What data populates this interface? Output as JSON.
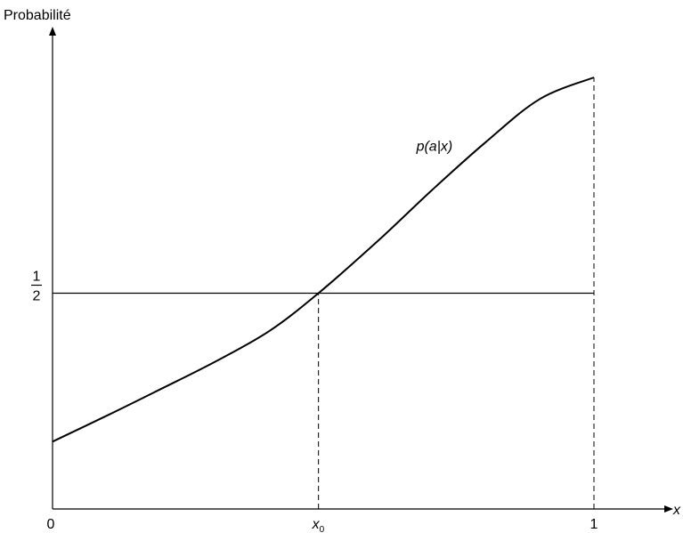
{
  "chart_data": {
    "type": "line",
    "ylabel": "Probabilité",
    "xlabel": "x",
    "xlim": [
      0,
      1.13
    ],
    "ylim": [
      0,
      1.06
    ],
    "x_ticks": [
      {
        "value": 0,
        "label": "0"
      },
      {
        "value": 0.4912,
        "label": "x",
        "subscript": "0"
      },
      {
        "value": 1,
        "label": "1"
      }
    ],
    "y_ticks": [
      {
        "value": 0.5,
        "numerator": "1",
        "denominator": "2"
      }
    ],
    "series": [
      {
        "name": "p(a|x)",
        "x": [
          0,
          0.1,
          0.2,
          0.3,
          0.4,
          0.4912,
          0.6,
          0.7,
          0.8,
          0.9,
          1
        ],
        "y": [
          0.156,
          0.216,
          0.278,
          0.341,
          0.412,
          0.5,
          0.62,
          0.738,
          0.85,
          0.95,
          1.0
        ]
      }
    ],
    "horizontal_line": {
      "y": 0.5,
      "x_range": [
        0,
        1
      ]
    },
    "dashed_lines": [
      {
        "x": 0.4912,
        "from_y": 0,
        "to_y": 0.5
      },
      {
        "x": 1,
        "from_y": 0,
        "to_y": 1.0
      }
    ],
    "grid": false
  }
}
